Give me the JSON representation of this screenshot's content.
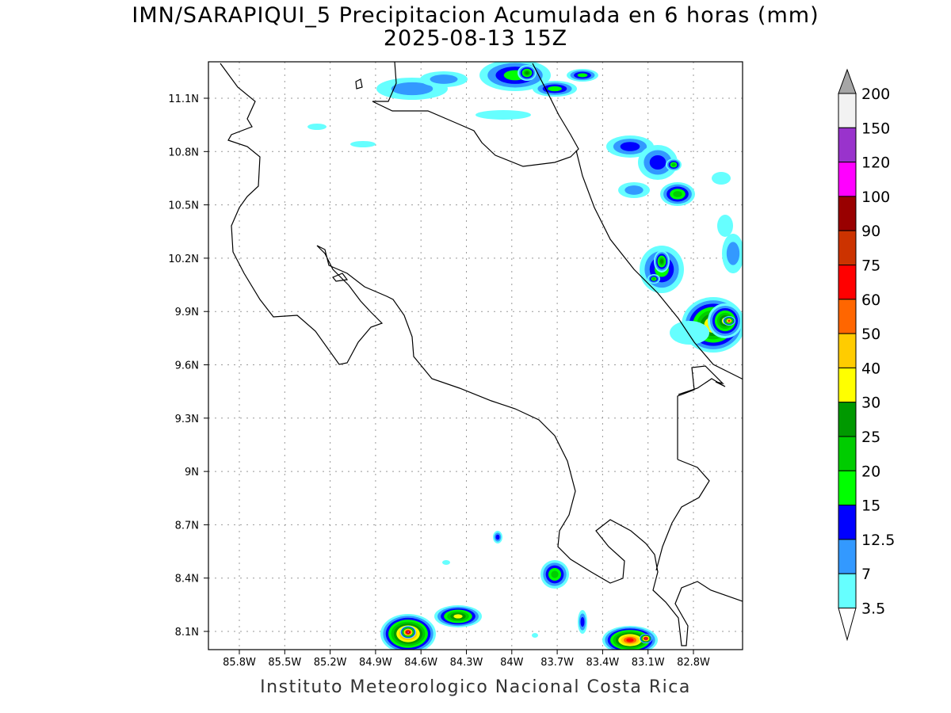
{
  "title": {
    "line1": "IMN/SARAPIQUI_5 Precipitacion Acumulada en 6 horas (mm)",
    "line2": "2025-08-13 15Z"
  },
  "axes": {
    "lon_ticks": [
      "85.8W",
      "85.5W",
      "85.2W",
      "84.9W",
      "84.6W",
      "84.3W",
      "84W",
      "83.7W",
      "83.4W",
      "83.1W",
      "82.8W"
    ],
    "lat_ticks": [
      "11.1N",
      "10.8N",
      "10.5N",
      "10.2N",
      "9.9N",
      "9.6N",
      "9.3N",
      "9N",
      "8.7N",
      "8.4N",
      "8.1N"
    ]
  },
  "colorbar": {
    "labels": [
      "3.5",
      "7",
      "12.5",
      "15",
      "20",
      "25",
      "30",
      "40",
      "50",
      "60",
      "75",
      "90",
      "100",
      "120",
      "150",
      "200"
    ],
    "colors": [
      "#66ffff",
      "#3399ff",
      "#0000ff",
      "#00ff00",
      "#00cc00",
      "#009900",
      "#ffff00",
      "#ffcc00",
      "#ff6600",
      "#ff0000",
      "#cc3300",
      "#990000",
      "#ff00ff",
      "#9933cc",
      "#f2f2f2"
    ],
    "over_color": "#a6a6a6",
    "under_color": "#ffffff"
  },
  "footer": "Instituto Meteorologico Nacional Costa Rica"
}
